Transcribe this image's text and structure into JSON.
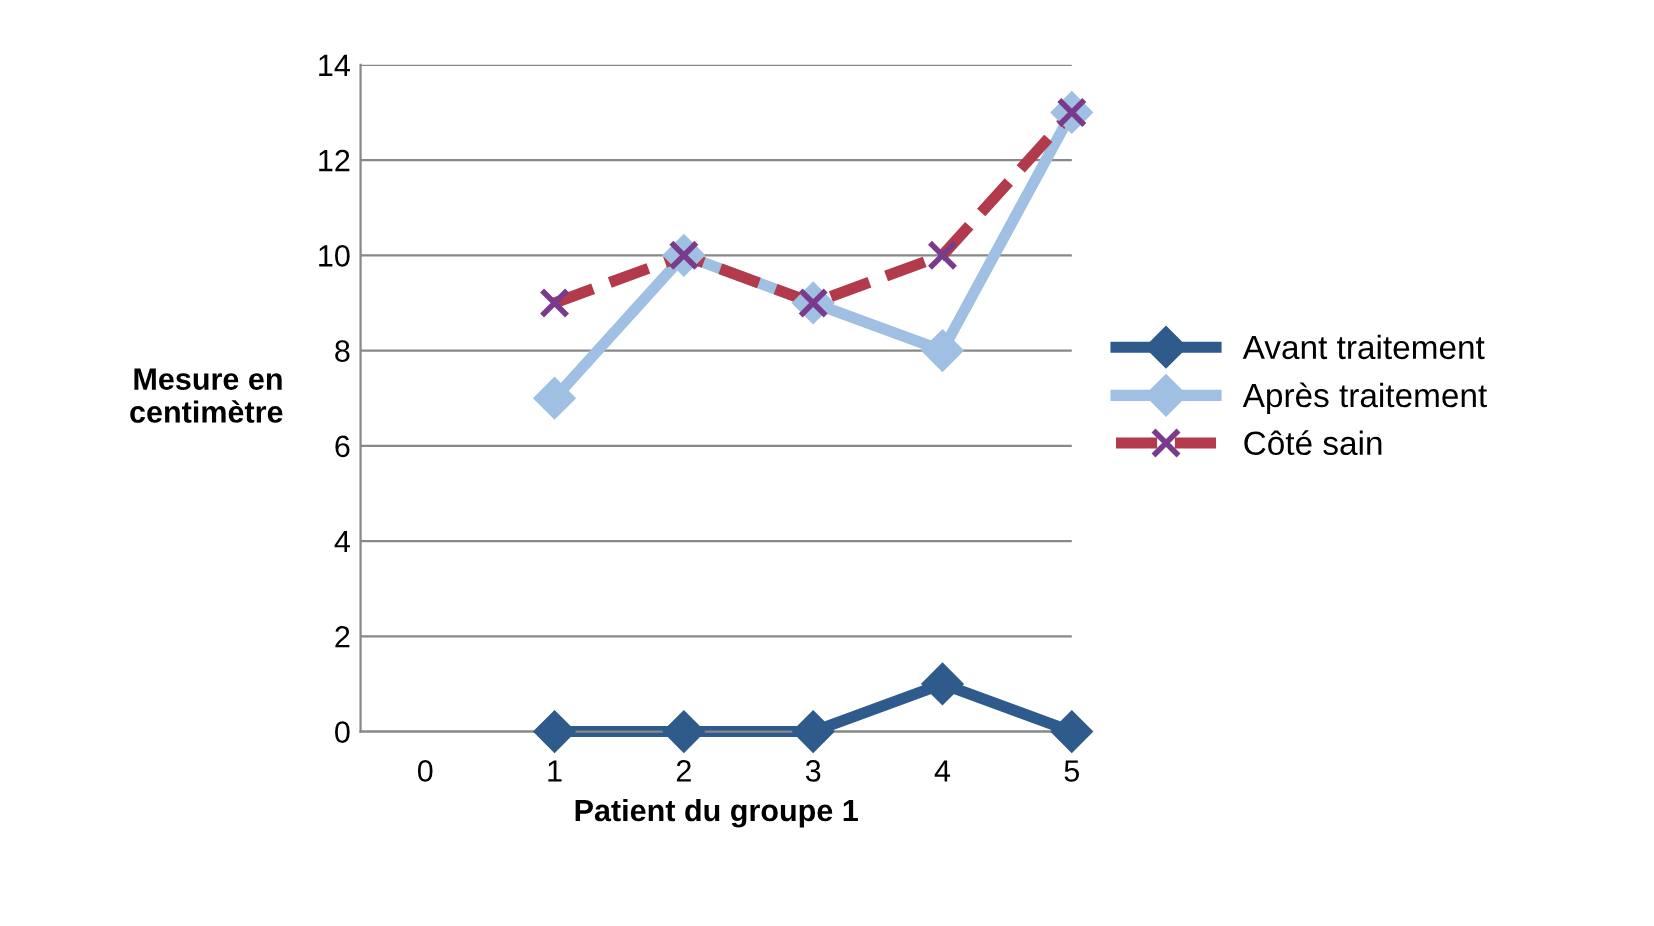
{
  "chart_data": {
    "type": "line",
    "xlabel": "Patient du groupe 1",
    "ylabel": "Mesure en\ncentimètre",
    "x": [
      1,
      2,
      3,
      4,
      5
    ],
    "series": [
      {
        "name": "Avant traitement",
        "color": "#2e5b8c",
        "values": [
          0,
          0,
          0,
          1,
          0
        ],
        "marker": "diamond",
        "line_style": "solid"
      },
      {
        "name": "Après traitement",
        "color": "#9fc0e3",
        "values": [
          7,
          10,
          9,
          8,
          13
        ],
        "marker": "diamond",
        "line_style": "solid"
      },
      {
        "name": "Côté sain",
        "color": "#b23a4a",
        "values": [
          9,
          10,
          9,
          10,
          13
        ],
        "marker": "cross",
        "line_style": "dashed"
      }
    ],
    "xlim": [
      -0.5,
      5
    ],
    "xticks": [
      0,
      1,
      2,
      3,
      4,
      5
    ],
    "ylim": [
      0,
      14
    ],
    "yticks": [
      0,
      2,
      4,
      6,
      8,
      10,
      12,
      14
    ],
    "grid": "y",
    "legend": "right"
  }
}
